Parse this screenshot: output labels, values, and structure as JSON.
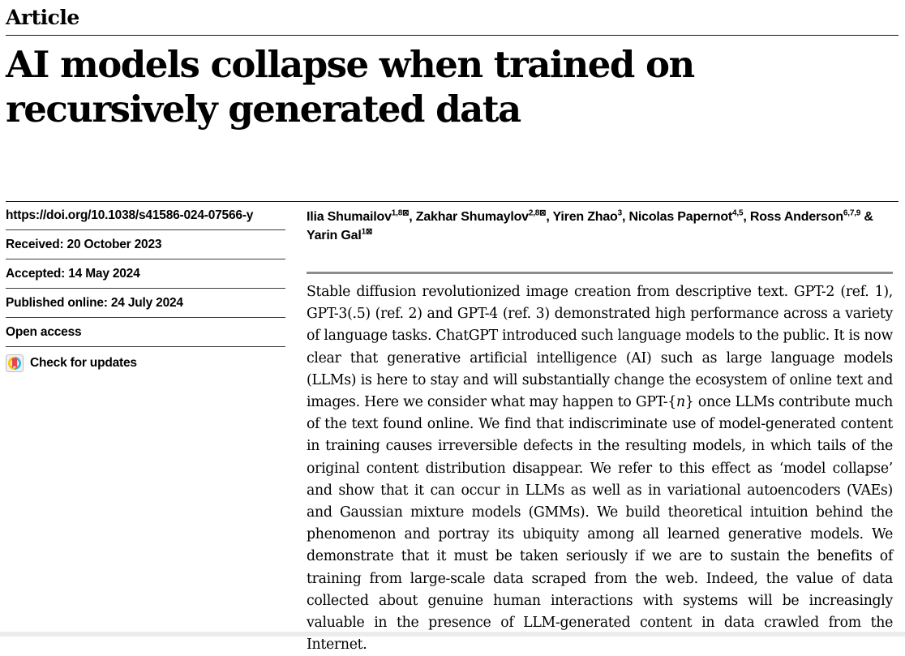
{
  "header": {
    "kicker": "Article",
    "title": "AI models collapse when trained on\nrecursively generated data"
  },
  "meta": {
    "doi": "https://doi.org/10.1038/s41586-024-07566-y",
    "received": "Received: 20 October 2023",
    "accepted": "Accepted: 14 May 2024",
    "published": "Published online: 24 July 2024",
    "open_access": "Open access",
    "check_for_updates": "Check for updates"
  },
  "authors": [
    {
      "name": "Ilia Shumailov",
      "sup": "1,8⊠",
      "sep": ", "
    },
    {
      "name": "Zakhar Shumaylov",
      "sup": "2,8⊠",
      "sep": ", "
    },
    {
      "name": "Yiren Zhao",
      "sup": "3",
      "sep": ", "
    },
    {
      "name": "Nicolas Papernot",
      "sup": "4,5",
      "sep": ", "
    },
    {
      "name": "Ross Anderson",
      "sup": "6,7,9",
      "sep": " & "
    },
    {
      "name": "Yarin Gal",
      "sup": "1⊠",
      "sep": ""
    }
  ],
  "abstract": {
    "segments": [
      {
        "text": "Stable diffusion revolutionized image creation from descriptive text. GPT-2 (ref. 1), GPT-3(.5) (ref. 2) and GPT-4 (ref. 3) demonstrated high performance across a variety of language tasks. ChatGPT introduced such language models to the public. It is now clear that generative artificial intelligence (AI) such as large language models (LLMs) is here to stay and will substantially change the ecosystem of online text and images. Here we consider what may happen to GPT-{"
      },
      {
        "text": "n",
        "italic": true
      },
      {
        "text": "} once LLMs contribute much of the text found online. We find that indiscriminate use of model-generated content in training causes irreversible defects in the resulting models, in which tails of the original content distribution disappear. We refer to this effect as ‘model collapse’ and show that it can occur in LLMs as well as in variational autoencoders (VAEs) and Gaussian mixture models (GMMs). We build theoretical intuition behind the phenomenon and portray its ubiquity among all learned generative models. We demonstrate that it must be taken seriously if we are to sustain the benefits of training from large-scale data scraped from the web. Indeed, the value of data collected about genuine human interactions with systems will be increasingly valuable in the presence of LLM-generated content in data crawled from the Internet."
      }
    ]
  },
  "icons": {
    "crossmark": "crossmark-circle-with-bookmark"
  },
  "colors": {
    "crossmark_yellow": "#fdc500",
    "crossmark_cyan": "#35b6e4",
    "crossmark_red": "#e8434f",
    "crossmark_button_bg": "#f0f0f0",
    "crossmark_button_border": "#c0c0c0",
    "abstract_rule_gray": "#8c8c8c",
    "text_black": "#000000"
  }
}
